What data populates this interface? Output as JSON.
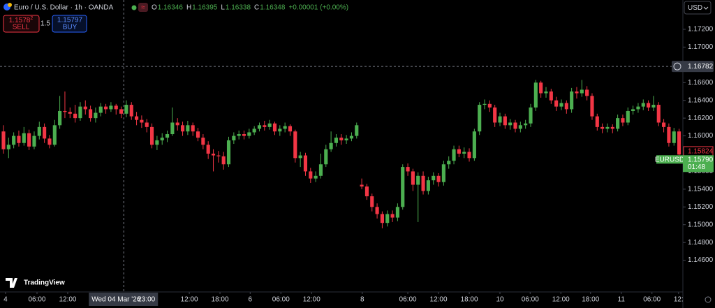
{
  "header": {
    "symbol": "Euro / U.S. Dollar · 1h · OANDA",
    "ohlc": [
      {
        "label": "O",
        "value": "1.16346"
      },
      {
        "label": "H",
        "value": "1.16395"
      },
      {
        "label": "L",
        "value": "1.16338"
      },
      {
        "label": "C",
        "value": "1.16348"
      },
      {
        "label": "",
        "value": "+0.00001 (+0.00%)"
      }
    ],
    "currency": "USD"
  },
  "trade": {
    "sell_price": "1.1578",
    "sell_price_sup": "2",
    "sell": "SELL",
    "spread": "1.5",
    "buy_price": "1.15797",
    "buy": "BUY"
  },
  "logo": "TradingView",
  "chart_data": {
    "type": "candlestick",
    "up_color": "#4caf50",
    "down_color": "#f23645",
    "open": [
      1.1605,
      1.1585,
      1.159,
      1.16,
      1.1592,
      1.1603,
      1.1588,
      1.16,
      1.161,
      1.1597,
      1.159,
      1.1612,
      1.1628,
      1.1627,
      1.1625,
      1.162,
      1.1633,
      1.163,
      1.162,
      1.1626,
      1.1633,
      1.163,
      1.1634,
      1.163,
      1.1625,
      1.1635,
      1.1622,
      1.1618,
      1.1615,
      1.161,
      1.159,
      1.1595,
      1.1598,
      1.1602,
      1.1615,
      1.1612,
      1.1605,
      1.1612,
      1.1605,
      1.1598,
      1.159,
      1.158,
      1.1578,
      1.1577,
      1.1568,
      1.1595,
      1.16,
      1.1602,
      1.16,
      1.1604,
      1.1608,
      1.1612,
      1.161,
      1.1614,
      1.1605,
      1.1608,
      1.1611,
      1.1605,
      1.1575,
      1.1578,
      1.156,
      1.1552,
      1.1555,
      1.1568,
      1.1585,
      1.1592,
      1.1598,
      1.1595,
      1.1597,
      1.16,
      1.1545,
      1.1543,
      1.1532,
      1.152,
      1.1512,
      1.1502,
      1.1512,
      1.1508,
      1.152,
      1.1565,
      1.156,
      1.1545,
      1.1555,
      1.1538,
      1.155,
      1.1555,
      1.1548,
      1.1568,
      1.1572,
      1.1585,
      1.158,
      1.1582,
      1.1575,
      1.1605,
      1.1635,
      1.1636,
      1.1632,
      1.1615,
      1.1622,
      1.1612,
      1.1615,
      1.1608,
      1.1612,
      1.1614,
      1.1632,
      1.166,
      1.1648,
      1.165,
      1.164,
      1.1633,
      1.1637,
      1.163,
      1.165,
      1.1648,
      1.1652,
      1.1645,
      1.1622,
      1.161,
      1.1608,
      1.161,
      1.1608,
      1.162,
      1.1615,
      1.1628,
      1.163,
      1.1633,
      1.1637,
      1.1632,
      1.1635,
      1.1615,
      1.161,
      1.1592,
      1.1605
    ],
    "high": [
      1.1612,
      1.1598,
      1.1604,
      1.1606,
      1.161,
      1.1607,
      1.1605,
      1.1616,
      1.1614,
      1.1601,
      1.1618,
      1.1645,
      1.165,
      1.1632,
      1.1635,
      1.1638,
      1.164,
      1.1634,
      1.1632,
      1.1637,
      1.1636,
      1.1638,
      1.1636,
      1.1633,
      1.164,
      1.1638,
      1.1627,
      1.1623,
      1.1619,
      1.1614,
      1.16,
      1.1603,
      1.1606,
      1.1632,
      1.162,
      1.1616,
      1.1617,
      1.1615,
      1.1609,
      1.1602,
      1.1594,
      1.1585,
      1.1583,
      1.1582,
      1.1599,
      1.1604,
      1.1606,
      1.1606,
      1.1608,
      1.1611,
      1.1615,
      1.1617,
      1.1618,
      1.1616,
      1.1612,
      1.1615,
      1.1613,
      1.1607,
      1.1582,
      1.1581,
      1.1564,
      1.156,
      1.158,
      1.159,
      1.1605,
      1.1602,
      1.1602,
      1.1601,
      1.1604,
      1.1615,
      1.1552,
      1.1546,
      1.1535,
      1.1524,
      1.1515,
      1.1516,
      1.1516,
      1.1524,
      1.1568,
      1.1569,
      1.1563,
      1.1559,
      1.156,
      1.1554,
      1.1559,
      1.1558,
      1.1572,
      1.1577,
      1.1589,
      1.1589,
      1.1587,
      1.1586,
      1.1608,
      1.1638,
      1.1641,
      1.164,
      1.1635,
      1.1626,
      1.1625,
      1.1619,
      1.1618,
      1.1616,
      1.1618,
      1.1636,
      1.1663,
      1.1662,
      1.1655,
      1.1653,
      1.1644,
      1.1641,
      1.164,
      1.1654,
      1.1655,
      1.1663,
      1.1656,
      1.1648,
      1.1625,
      1.1614,
      1.1614,
      1.1613,
      1.1624,
      1.1624,
      1.1632,
      1.1634,
      1.1637,
      1.1641,
      1.164,
      1.1645,
      1.1638,
      1.1619,
      1.1614,
      1.1609,
      1.1608
    ],
    "low": [
      1.158,
      1.1575,
      1.1586,
      1.1588,
      1.1589,
      1.1584,
      1.1585,
      1.1596,
      1.1592,
      1.1586,
      1.1588,
      1.1608,
      1.162,
      1.162,
      1.1615,
      1.1617,
      1.1624,
      1.1616,
      1.1615,
      1.1622,
      1.1625,
      1.1627,
      1.1624,
      1.162,
      1.1621,
      1.1618,
      1.1612,
      1.1609,
      1.1604,
      1.1586,
      1.1584,
      1.159,
      1.1593,
      1.16,
      1.1606,
      1.16,
      1.1601,
      1.16,
      1.1594,
      1.1585,
      1.1574,
      1.156,
      1.157,
      1.1562,
      1.1565,
      1.1591,
      1.1596,
      1.1596,
      1.1597,
      1.1601,
      1.1605,
      1.1606,
      1.1607,
      1.1601,
      1.16,
      1.1604,
      1.16,
      1.157,
      1.1565,
      1.1555,
      1.1547,
      1.1548,
      1.1552,
      1.1565,
      1.1582,
      1.1588,
      1.159,
      1.1591,
      1.1594,
      1.1597,
      1.154,
      1.1528,
      1.1515,
      1.1507,
      1.1496,
      1.1498,
      1.1503,
      1.1504,
      1.1517,
      1.1555,
      1.1538,
      1.1503,
      1.1534,
      1.1534,
      1.1545,
      1.1543,
      1.1544,
      1.1563,
      1.1568,
      1.1576,
      1.1575,
      1.1571,
      1.1572,
      1.1601,
      1.163,
      1.1627,
      1.161,
      1.1611,
      1.1608,
      1.1607,
      1.1604,
      1.1604,
      1.1608,
      1.161,
      1.1628,
      1.1643,
      1.1643,
      1.1636,
      1.1628,
      1.1629,
      1.1625,
      1.1626,
      1.1642,
      1.1644,
      1.164,
      1.1618,
      1.1606,
      1.1603,
      1.1604,
      1.1603,
      1.1605,
      1.1611,
      1.1612,
      1.1624,
      1.1626,
      1.1629,
      1.1628,
      1.1628,
      1.1611,
      1.1604,
      1.1588,
      1.1589,
      1.1575
    ],
    "close": [
      1.1585,
      1.159,
      1.16,
      1.1592,
      1.1603,
      1.1588,
      1.16,
      1.161,
      1.1597,
      1.159,
      1.1612,
      1.1628,
      1.1627,
      1.1625,
      1.162,
      1.1633,
      1.163,
      1.162,
      1.1626,
      1.1633,
      1.163,
      1.1634,
      1.163,
      1.1625,
      1.1635,
      1.1622,
      1.1618,
      1.1615,
      1.161,
      1.159,
      1.1595,
      1.1598,
      1.1602,
      1.1615,
      1.1612,
      1.1605,
      1.1612,
      1.1605,
      1.1598,
      1.159,
      1.158,
      1.1578,
      1.1577,
      1.1568,
      1.1595,
      1.16,
      1.1602,
      1.16,
      1.1604,
      1.1608,
      1.1612,
      1.161,
      1.1614,
      1.1605,
      1.1608,
      1.1611,
      1.1605,
      1.1575,
      1.1578,
      1.156,
      1.1552,
      1.1555,
      1.1568,
      1.1585,
      1.1592,
      1.1598,
      1.1595,
      1.1597,
      1.16,
      1.1612,
      1.1543,
      1.1532,
      1.152,
      1.1512,
      1.1502,
      1.1512,
      1.1508,
      1.152,
      1.1565,
      1.156,
      1.1545,
      1.1555,
      1.1538,
      1.155,
      1.1555,
      1.1548,
      1.1568,
      1.1572,
      1.1585,
      1.158,
      1.1582,
      1.1575,
      1.1605,
      1.1635,
      1.1636,
      1.1632,
      1.1615,
      1.1622,
      1.1612,
      1.1615,
      1.1608,
      1.1612,
      1.1614,
      1.1632,
      1.166,
      1.1648,
      1.165,
      1.164,
      1.1633,
      1.1637,
      1.163,
      1.165,
      1.1648,
      1.1652,
      1.1645,
      1.1622,
      1.161,
      1.1608,
      1.161,
      1.1608,
      1.162,
      1.1615,
      1.1628,
      1.163,
      1.1633,
      1.1637,
      1.1632,
      1.1635,
      1.1615,
      1.161,
      1.1592,
      1.1605,
      1.1579
    ],
    "xlim": [
      -0.68,
      132.74
    ],
    "xticks": [
      {
        "value": 0.4,
        "label": "4"
      },
      {
        "value": 6.55,
        "label": "06:00"
      },
      {
        "value": 12.55,
        "label": "12:00"
      },
      {
        "value": 36.3,
        "label": "12:00"
      },
      {
        "value": 42.3,
        "label": "18:00"
      },
      {
        "value": 48.2,
        "label": "6"
      },
      {
        "value": 54.2,
        "label": "06:00"
      },
      {
        "value": 60.2,
        "label": "12:00"
      },
      {
        "value": 70.1,
        "label": "8"
      },
      {
        "value": 79,
        "label": "06:00"
      },
      {
        "value": 85,
        "label": "12:00"
      },
      {
        "value": 91,
        "label": "18:00"
      },
      {
        "value": 97,
        "label": "10"
      },
      {
        "value": 102.9,
        "label": "06:00"
      },
      {
        "value": 108.9,
        "label": "12:00"
      },
      {
        "value": 114.7,
        "label": "18:00"
      },
      {
        "value": 120.7,
        "label": "11"
      },
      {
        "value": 126.7,
        "label": "06:00"
      },
      {
        "value": 131.9,
        "label": "12:"
      }
    ],
    "ylim": [
      1.14243,
      1.1753
    ],
    "yticks": [
      {
        "value": 1.172,
        "label": "1.17200"
      },
      {
        "value": 1.17,
        "label": "1.17000"
      },
      {
        "value": 1.166,
        "label": "1.16600"
      },
      {
        "value": 1.164,
        "label": "1.16400"
      },
      {
        "value": 1.162,
        "label": "1.16200"
      },
      {
        "value": 1.16,
        "label": "1.16000"
      },
      {
        "value": 1.156,
        "label": "1.15600"
      },
      {
        "value": 1.154,
        "label": "1.15400"
      },
      {
        "value": 1.152,
        "label": "1.15200"
      },
      {
        "value": 1.15,
        "label": "1.15000"
      },
      {
        "value": 1.148,
        "label": "1.14800"
      },
      {
        "value": 1.146,
        "label": "1.14600"
      }
    ],
    "crosshair": {
      "x": 23.5,
      "price": 1.16782,
      "date_label": "Wed 04 Mar '26",
      "time_label": "23:00"
    },
    "bid_price": 1.15824,
    "last_price": {
      "symbol": "EURUSD",
      "value": 1.1579,
      "label": "1.15790",
      "countdown": "01:48"
    }
  }
}
